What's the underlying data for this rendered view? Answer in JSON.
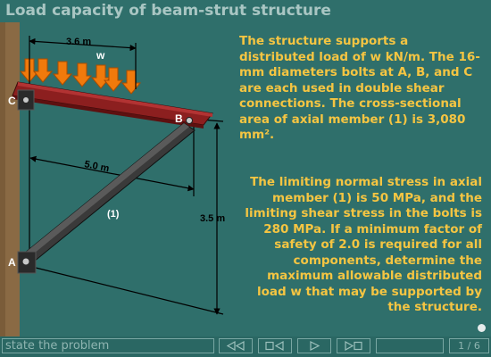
{
  "title": "Load capacity of beam-strut structure",
  "figure": {
    "dim_top": "3.6 m",
    "load_label": "w",
    "strut_length": "5.0 m",
    "height": "3.5 m",
    "member_label": "(1)",
    "point_a": "A",
    "point_b": "B",
    "point_c": "C",
    "colors": {
      "wall": "#8a6a44",
      "beam": "#8c1f1f",
      "strut": "#3a3a3a",
      "load_arrow": "#f07a0c"
    }
  },
  "problem": {
    "statement": "The structure supports a distributed load of w kN/m. The 16-mm diameters bolts at A, B, and C are each used in double shear connections. The cross-sectional area of axial member (1) is 3,080 mm².",
    "question": "The limiting normal stress in axial member (1) is 50 MPa, and the limiting shear stress in the bolts is 280 MPa. If a minimum factor of safety of 2.0 is required for all components, determine the maximum allowable distributed load w that may be supported by the structure."
  },
  "controls": {
    "step_label": "state the problem",
    "page_counter": "1 / 6",
    "buttons": [
      {
        "name": "rewind",
        "icon": "rewind-icon"
      },
      {
        "name": "stop",
        "icon": "stop-icon"
      },
      {
        "name": "play",
        "icon": "play-icon"
      },
      {
        "name": "next",
        "icon": "next-icon"
      }
    ]
  }
}
